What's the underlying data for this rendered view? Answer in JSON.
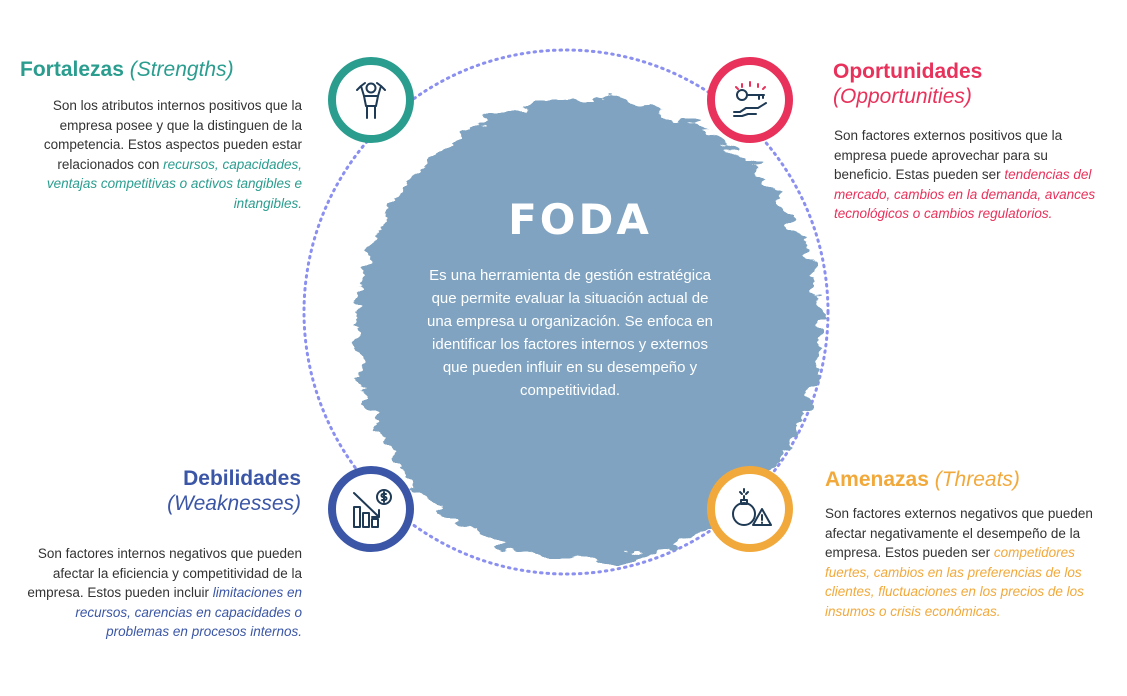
{
  "center": {
    "title": "FODA",
    "description": "Es una herramienta de gestión estratégica que permite evaluar la situación actual de una empresa u organización. Se enfoca en identificar los factores internos y externos que pueden influir en su desempeño y competitividad."
  },
  "quadrants": {
    "strengths": {
      "title": "Fortalezas",
      "title_en": "(Strengths)",
      "text": "Son los atributos internos positivos que la empresa posee y que la distinguen de la competencia. Estos aspectos pueden estar relacionados con ",
      "highlight": "recursos, capacidades, ventajas competitivas o activos tangibles e intangibles.",
      "color": "#2a9d8f",
      "icon": "strong-person-icon"
    },
    "opportunities": {
      "title": "Oportunidades",
      "title_en": "(Opportunities)",
      "text": "Son factores externos positivos que la empresa puede aprovechar para su beneficio. Estas pueden ser ",
      "highlight": "tendencias del mercado, cambios en la demanda, avances tecnológicos o cambios regulatorios.",
      "color": "#e8315b",
      "icon": "key-in-hand-icon"
    },
    "weaknesses": {
      "title": "Debilidades",
      "title_en": "(Weaknesses)",
      "text": "Son factores internos negativos que pueden afectar la eficiencia y competitividad de la empresa. Estos pueden incluir ",
      "highlight": "limitaciones en recursos, carencias en capacidades o problemas en procesos internos.",
      "color": "#3b56a6",
      "icon": "declining-chart-dollar-icon"
    },
    "threats": {
      "title": "Amenazas",
      "title_en": "(Threats)",
      "text": "Son factores externos negativos que pueden afectar negativamente el desempeño de la empresa. Estos pueden ser ",
      "highlight": "competidores fuertes, cambios en las preferencias de los clientes, fluctuaciones en los precios de los insumos o crisis económicas.",
      "color": "#f2a93b",
      "icon": "bomb-warning-icon"
    }
  },
  "colors": {
    "center_fill": "#7fa3c0",
    "dotted_ring": "#8a8ff0"
  }
}
